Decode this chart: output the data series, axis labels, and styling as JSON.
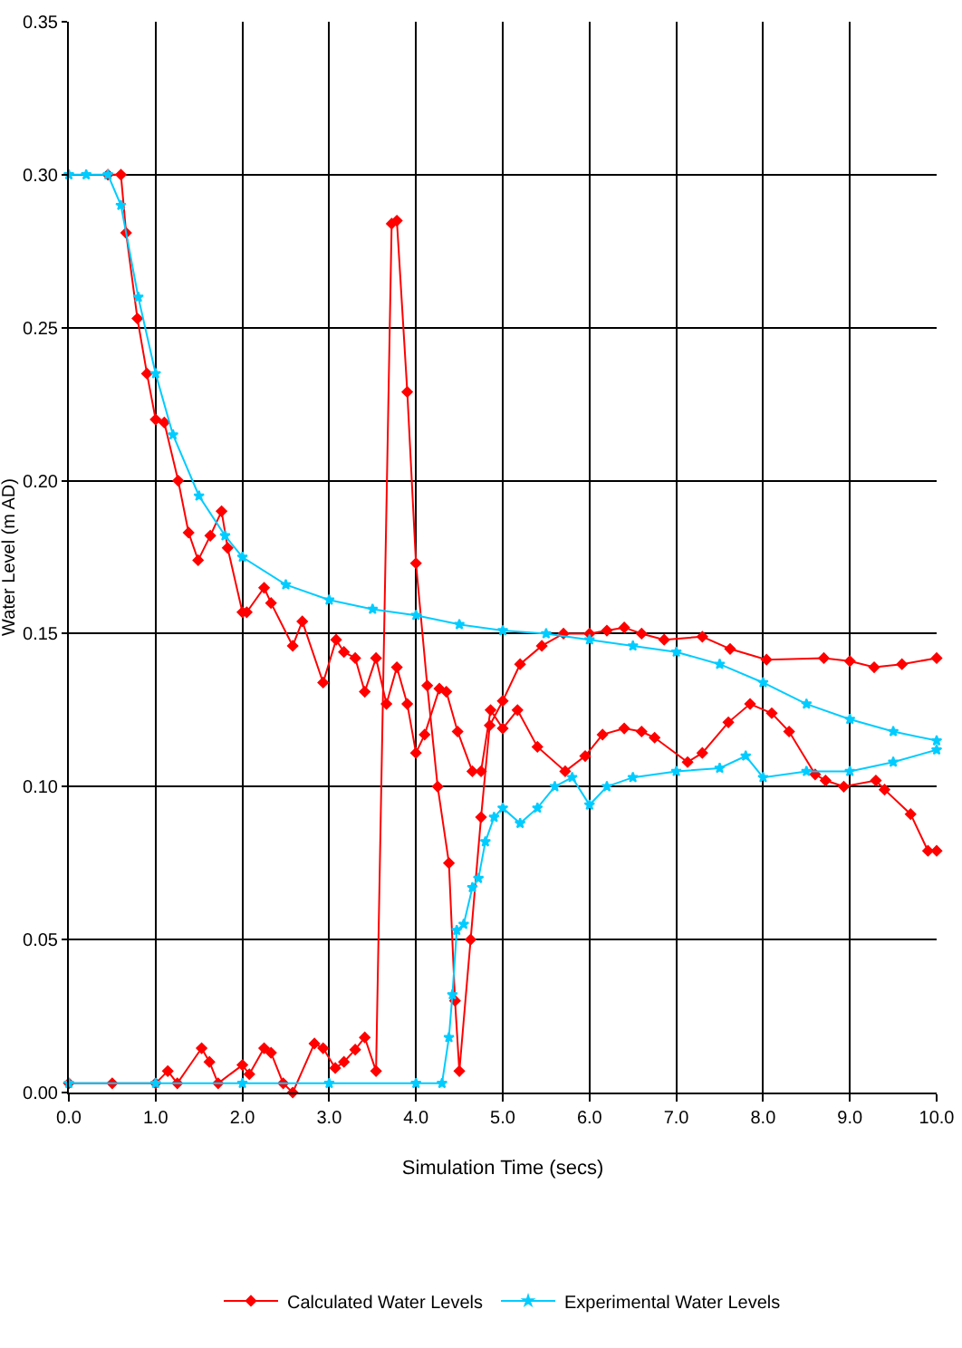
{
  "chart_data": {
    "type": "line",
    "xlabel": "Simulation Time (secs)",
    "ylabel": "Water Level (m AD)",
    "xlim": [
      0,
      10
    ],
    "xticks": [
      {
        "value": 0,
        "label": "0.0"
      },
      {
        "value": 1,
        "label": "1.0"
      },
      {
        "value": 2,
        "label": "2.0"
      },
      {
        "value": 3,
        "label": "3.0"
      },
      {
        "value": 4,
        "label": "4.0"
      },
      {
        "value": 5,
        "label": "5.0"
      },
      {
        "value": 6,
        "label": "6.0"
      },
      {
        "value": 7,
        "label": "7.0"
      },
      {
        "value": 8,
        "label": "8.0"
      },
      {
        "value": 9,
        "label": "9.0"
      },
      {
        "value": 10,
        "label": "10.0"
      }
    ],
    "ylim": [
      0,
      0.35
    ],
    "yticks": [
      {
        "value": 0,
        "label": "0.00"
      },
      {
        "value": 0.05,
        "label": "0.05"
      },
      {
        "value": 0.1,
        "label": "0.10"
      },
      {
        "value": 0.15,
        "label": "0.15"
      },
      {
        "value": 0.2,
        "label": "0.20"
      },
      {
        "value": 0.25,
        "label": "0.25"
      },
      {
        "value": 0.3,
        "label": "0.30"
      },
      {
        "value": 0.35,
        "label": "0.35"
      }
    ],
    "grid": true,
    "legend": "bottom",
    "line_style": "solid",
    "series": [
      {
        "name": "Calculated Water Levels",
        "color": "#ff0000",
        "marker": "diamond",
        "x": [
          0.45,
          0.6,
          0.66,
          0.79,
          0.9,
          1.0,
          1.1,
          1.26,
          1.38,
          1.49,
          1.63,
          1.76,
          1.83,
          2.0,
          2.05,
          2.25,
          2.33,
          2.58,
          2.69,
          2.93,
          3.08,
          3.17,
          3.3,
          3.41,
          3.54,
          3.66,
          3.78,
          3.9,
          4.0,
          4.1,
          4.27,
          4.35,
          4.48,
          4.65,
          4.75,
          4.86,
          5.0,
          5.17,
          5.4,
          5.72,
          5.95,
          6.15,
          6.4,
          6.6,
          6.75,
          7.13,
          7.3,
          7.6,
          7.85,
          8.1,
          8.3,
          8.6,
          8.72,
          8.93,
          9.3,
          9.4,
          9.7,
          9.9,
          10,
          null,
          0,
          0.5,
          1.0,
          1.14,
          1.25,
          1.53,
          1.62,
          1.72,
          2.0,
          2.08,
          2.25,
          2.33,
          2.47,
          2.58,
          2.83,
          2.93,
          3.07,
          3.17,
          3.3,
          3.41,
          3.54,
          3.72,
          3.78,
          3.9,
          4.0,
          4.13,
          4.25,
          4.38,
          4.45,
          4.5,
          4.63,
          4.75,
          4.85,
          5.0,
          5.2,
          5.45,
          5.7,
          6.0,
          6.2,
          6.4,
          6.6,
          6.86,
          7.3,
          7.62,
          8.04,
          8.7,
          9.0,
          9.28,
          9.6,
          10
        ],
        "values": [
          0.3,
          0.3,
          0.281,
          0.253,
          0.235,
          0.22,
          0.219,
          0.2,
          0.183,
          0.174,
          0.182,
          0.19,
          0.178,
          0.157,
          0.157,
          0.165,
          0.16,
          0.146,
          0.154,
          0.134,
          0.148,
          0.144,
          0.142,
          0.131,
          0.142,
          0.127,
          0.139,
          0.127,
          0.111,
          0.117,
          0.132,
          0.131,
          0.118,
          0.105,
          0.105,
          0.125,
          0.119,
          0.125,
          0.113,
          0.105,
          0.11,
          0.117,
          0.119,
          0.118,
          0.116,
          0.108,
          0.111,
          0.121,
          0.127,
          0.124,
          0.118,
          0.104,
          0.102,
          0.1,
          0.102,
          0.099,
          0.091,
          0.079,
          0.079,
          null,
          0.003,
          0.003,
          0.003,
          0.007,
          0.003,
          0.0145,
          0.01,
          0.003,
          0.009,
          0.006,
          0.0145,
          0.013,
          0.003,
          0.0,
          0.016,
          0.0145,
          0.008,
          0.01,
          0.014,
          0.018,
          0.007,
          0.284,
          0.285,
          0.229,
          0.173,
          0.133,
          0.1,
          0.075,
          0.03,
          0.007,
          0.05,
          0.09,
          0.12,
          0.128,
          0.14,
          0.146,
          0.15,
          0.15,
          0.151,
          0.152,
          0.15,
          0.148,
          0.149,
          0.145,
          0.1415,
          0.142,
          0.141,
          0.139,
          0.14,
          0.142
        ]
      },
      {
        "name": "Experimental Water Levels",
        "color": "#00ccff",
        "marker": "star",
        "x": [
          0,
          0.2,
          0.45,
          0.6,
          0.8,
          1.0,
          1.2,
          1.5,
          1.8,
          2.0,
          2.5,
          3.0,
          3.5,
          4.0,
          4.5,
          5.0,
          5.5,
          6.0,
          6.5,
          7.0,
          7.5,
          8.0,
          8.5,
          9.0,
          9.5,
          10,
          null,
          0,
          1,
          2,
          3,
          4,
          4.3,
          4.38,
          4.42,
          4.47,
          4.55,
          4.65,
          4.72,
          4.8,
          4.9,
          5.0,
          5.2,
          5.4,
          5.6,
          5.8,
          6.0,
          6.2,
          6.5,
          7.0,
          7.5,
          7.8,
          8.0,
          8.5,
          9.0,
          9.5,
          10
        ],
        "values": [
          0.3,
          0.3,
          0.3,
          0.29,
          0.26,
          0.235,
          0.215,
          0.195,
          0.182,
          0.175,
          0.166,
          0.161,
          0.158,
          0.156,
          0.153,
          0.151,
          0.15,
          0.148,
          0.146,
          0.144,
          0.14,
          0.134,
          0.127,
          0.122,
          0.118,
          0.115,
          null,
          0.003,
          0.003,
          0.003,
          0.003,
          0.003,
          0.003,
          0.018,
          0.032,
          0.053,
          0.055,
          0.067,
          0.07,
          0.082,
          0.09,
          0.093,
          0.088,
          0.093,
          0.1,
          0.103,
          0.094,
          0.1,
          0.103,
          0.105,
          0.106,
          0.11,
          0.103,
          0.105,
          0.105,
          0.108,
          0.112
        ]
      }
    ]
  }
}
